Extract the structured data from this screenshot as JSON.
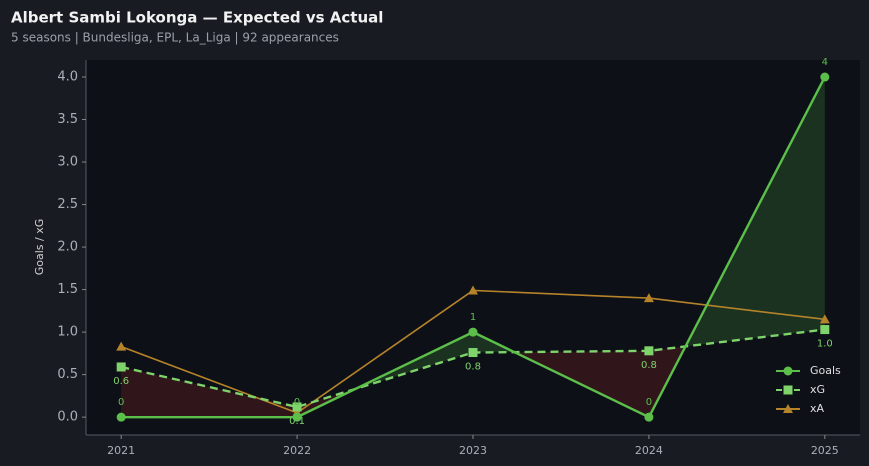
{
  "chart_data": {
    "type": "line",
    "title": "Albert Sambi Lokonga — Expected vs Actual",
    "subtitle": "5 seasons | Bundesliga, EPL, La_Liga | 92 appearances",
    "y_label": "Goals / xG",
    "x": [
      2021,
      2022,
      2023,
      2024,
      2025
    ],
    "xlim": [
      2020.8,
      2025.2
    ],
    "xticks": [
      2021,
      2022,
      2023,
      2024,
      2025
    ],
    "ylim": [
      -0.21,
      4.2
    ],
    "yticks": [
      {
        "value": 0,
        "label": "0.0"
      },
      0.5,
      {
        "value": 1,
        "label": "1.0"
      },
      1.5,
      {
        "value": 2,
        "label": "2.0"
      },
      2.5,
      {
        "value": 3,
        "label": "3.0"
      },
      3.5,
      {
        "value": 4,
        "label": "4.0"
      }
    ],
    "legend": "lower right",
    "series": [
      {
        "name": "Goals",
        "color": "#5bbf4a",
        "marker": "circle",
        "dash": false,
        "values": [
          0,
          0,
          1,
          0,
          4
        ]
      },
      {
        "name": "xG",
        "color": "#7ed36b",
        "marker": "square",
        "dash": true,
        "values": [
          0.59,
          0.12,
          0.76,
          0.78,
          1.03
        ],
        "value_labels": [
          "0.6",
          "0.1",
          "0.8",
          "0.8",
          "1.0"
        ]
      },
      {
        "name": "xA",
        "color": "#b5832a",
        "marker": "triangle",
        "dash": false,
        "values": [
          0.83,
          0.05,
          1.49,
          1.4,
          1.15
        ]
      }
    ]
  }
}
